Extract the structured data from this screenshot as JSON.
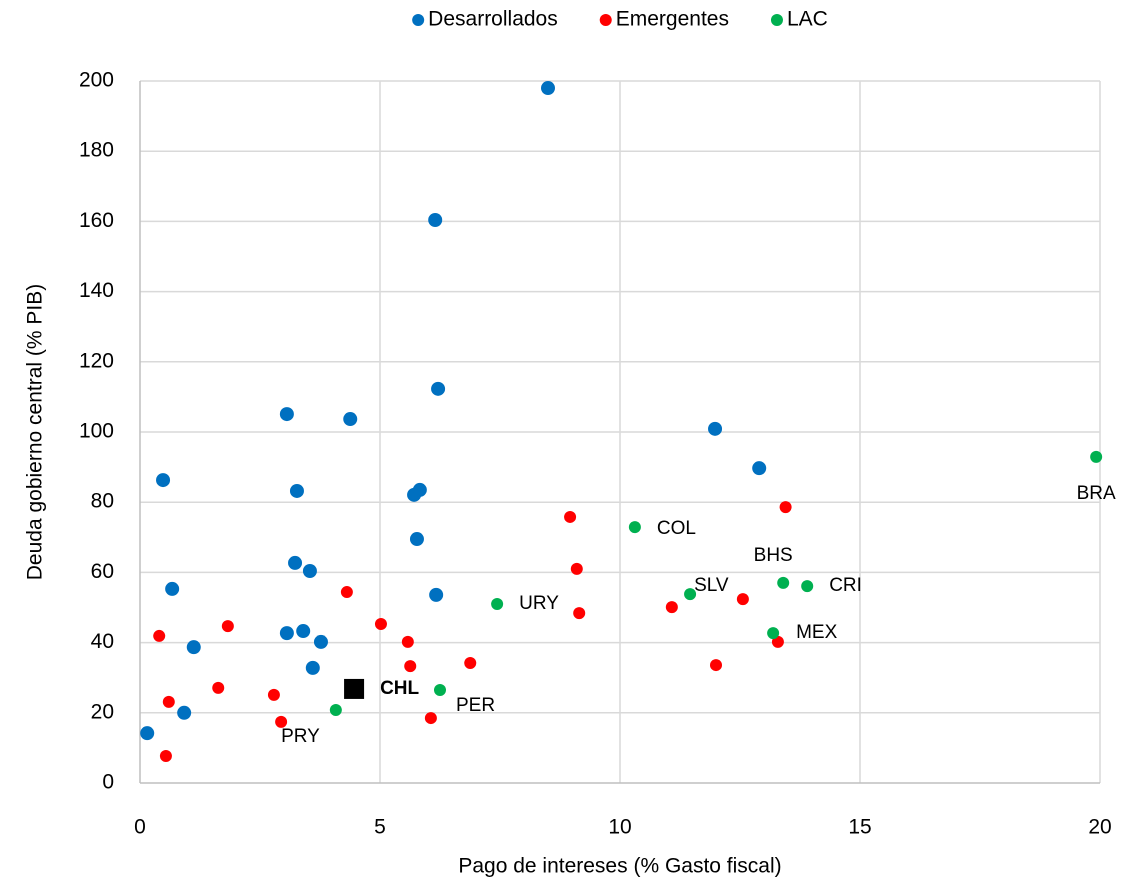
{
  "chart_data": {
    "type": "scatter",
    "x_label": "Pago de intereses (% Gasto fiscal)",
    "y_label": "Deuda gobierno central (% PIB)",
    "xlim": [
      0,
      20
    ],
    "ylim": [
      0,
      200
    ],
    "xticks": [
      0,
      5,
      10,
      15,
      20
    ],
    "yticks": [
      0,
      20,
      40,
      60,
      80,
      100,
      120,
      140,
      160,
      180,
      200
    ],
    "grid": true,
    "legend": "top",
    "series": [
      {
        "name": "Desarrollados",
        "color": "#0070C0",
        "x": [
          0.15,
          0.48,
          0.67,
          0.92,
          1.12,
          3.06,
          3.06,
          3.23,
          3.27,
          3.4,
          3.54,
          3.6,
          3.77,
          4.38,
          5.71,
          5.83,
          5.77,
          6.15,
          6.17,
          6.21,
          8.5,
          11.98,
          12.9
        ],
        "values": [
          14.2,
          86.3,
          55.3,
          20,
          38.7,
          105.1,
          42.7,
          62.7,
          83.2,
          43.3,
          60.4,
          32.8,
          40.2,
          103.7,
          82.1,
          83.5,
          69.5,
          160.4,
          53.6,
          112.3,
          198,
          100.9,
          89.7
        ]
      },
      {
        "name": "Emergentes",
        "color": "#FF0000",
        "x": [
          0.4,
          0.54,
          0.6,
          1.63,
          1.83,
          2.79,
          2.94,
          4.31,
          5.02,
          5.58,
          5.63,
          6.06,
          6.88,
          8.96,
          9.1,
          9.15,
          11.08,
          12.0,
          12.56,
          13.45,
          13.29
        ],
        "values": [
          41.9,
          7.7,
          23.1,
          27.1,
          44.7,
          25.1,
          17.4,
          54.4,
          45.3,
          40.2,
          33.3,
          18.5,
          34.2,
          75.8,
          61,
          48.4,
          50.1,
          33.6,
          52.4,
          78.6,
          40.2
        ]
      },
      {
        "name": "LAC",
        "color": "#00B050",
        "x": [
          4.08,
          6.25,
          7.44,
          10.31,
          11.46,
          13.4,
          13.19,
          13.9,
          19.92
        ],
        "values": [
          20.8,
          26.5,
          51,
          72.9,
          53.8,
          57,
          42.7,
          56.1,
          92.9
        ],
        "labels": [
          "PRY",
          "PER",
          "URY",
          "COL",
          "SLV",
          "BHS",
          "MEX",
          "CRI",
          "BRA"
        ]
      }
    ],
    "highlight": {
      "label": "CHL",
      "x": 4.46,
      "y": 26.8,
      "color": "#000000"
    }
  }
}
